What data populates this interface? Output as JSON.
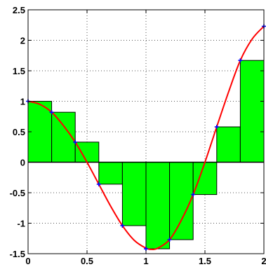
{
  "chart_data": {
    "type": "bar",
    "title": "",
    "xlabel": "",
    "ylabel": "",
    "xlim": [
      0,
      2
    ],
    "ylim": [
      -1.5,
      2.5
    ],
    "grid": true,
    "x_ticks": [
      "0",
      "0.5",
      "1",
      "1.5",
      "2"
    ],
    "y_ticks": [
      "2.5",
      "2",
      "1.5",
      "1",
      "0.5",
      "0",
      "-0.5",
      "-1",
      "-1.5"
    ],
    "bars": {
      "name": "",
      "bin_width": 0.2,
      "x_left": [
        0,
        0.2,
        0.4,
        0.6,
        0.8,
        1.0,
        1.2,
        1.4,
        1.6,
        1.8
      ],
      "values": [
        1.0,
        0.82,
        0.33,
        -0.36,
        -1.04,
        -1.42,
        -1.27,
        -0.53,
        0.58,
        1.67
      ]
    },
    "curve": {
      "name": "",
      "x": [
        0,
        0.1,
        0.2,
        0.3,
        0.4,
        0.5,
        0.6,
        0.7,
        0.8,
        0.9,
        1.0,
        1.05,
        1.1,
        1.2,
        1.3,
        1.4,
        1.5,
        1.6,
        1.7,
        1.8,
        1.9,
        2.0
      ],
      "y": [
        1.0,
        0.95,
        0.82,
        0.6,
        0.33,
        0.0,
        -0.36,
        -0.72,
        -1.04,
        -1.28,
        -1.41,
        -1.43,
        -1.41,
        -1.27,
        -0.95,
        -0.53,
        0.0,
        0.58,
        1.15,
        1.67,
        2.02,
        2.23
      ]
    },
    "markers": {
      "x": [
        0,
        0.2,
        0.4,
        0.6,
        0.8,
        1.0,
        1.2,
        1.4,
        1.6,
        1.8,
        2.0
      ],
      "y": [
        1.0,
        0.82,
        0.33,
        -0.36,
        -1.04,
        -1.42,
        -1.27,
        -0.53,
        0.58,
        1.67,
        2.23
      ]
    },
    "colors": {
      "bar_fill": "#00ff00",
      "bar_edge": "#000000",
      "curve": "#ff0000",
      "marker": "#0000ff",
      "grid": "#555555",
      "axis": "#000000"
    }
  }
}
